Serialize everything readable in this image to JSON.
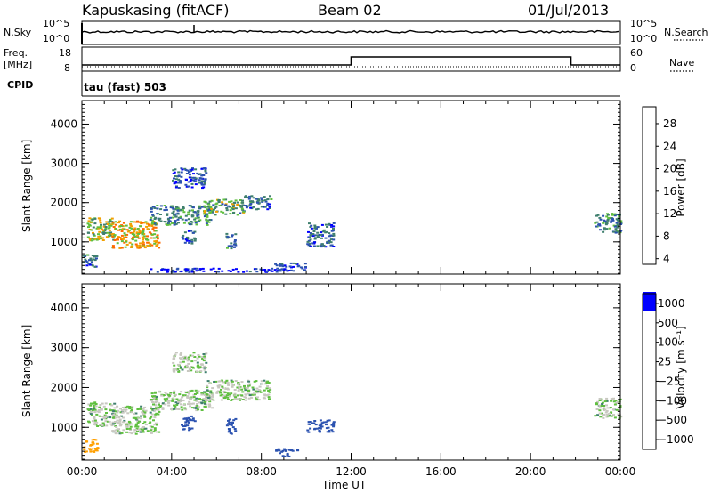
{
  "header": {
    "station": "Kapuskasing (fitACF)",
    "beam": "Beam 02",
    "date": "01/Jul/2013"
  },
  "top_panel": {
    "left_label": "N.Sky",
    "left_ticks": [
      "10^5",
      "10^0"
    ],
    "right_ticks": [
      "10^5",
      "10^0"
    ],
    "right_label": "N.Search"
  },
  "freq_panel": {
    "left_label_line1": "Freq.",
    "left_label_line2": "[MHz]",
    "left_ticks": [
      "18",
      "8"
    ],
    "right_ticks": [
      "60",
      "0"
    ],
    "right_label": "Nave"
  },
  "cpid": {
    "label": "CPID",
    "value": "tau (fast) 503"
  },
  "colors": {
    "power_scale": [
      "#0000ff",
      "#2b52b0",
      "#3f7f6e",
      "#5fbf3f",
      "#f2a000",
      "#ff6a00",
      "#ff0000"
    ],
    "velocity_scale": [
      "#ff0000",
      "#ff5a00",
      "#ffa000",
      "#c8c8c0",
      "#c8c8c0",
      "#5fbf3f",
      "#3f7f6e",
      "#2b52b0",
      "#0000ff"
    ]
  },
  "chart_data": [
    {
      "type": "heatmap",
      "name": "power",
      "xlabel": "Time UT",
      "ylabel": "Slant Range [km]",
      "xlim": [
        0,
        24
      ],
      "ylim": [
        180,
        4600
      ],
      "x_ticks": [
        "00:00",
        "04:00",
        "08:00",
        "12:00",
        "16:00",
        "20:00",
        "00:00"
      ],
      "y_ticks": [
        "1000",
        "2000",
        "3000",
        "4000"
      ],
      "colorbar": {
        "label": "Power [dB]",
        "ticks": [
          "28",
          "24",
          "20",
          "16",
          "12",
          "8",
          "4"
        ]
      },
      "patches": [
        {
          "t0": 0.2,
          "t1": 1.4,
          "r0": 1050,
          "r1": 1650,
          "db": 14
        },
        {
          "t0": 1.3,
          "t1": 3.4,
          "r0": 850,
          "r1": 1550,
          "db": 18
        },
        {
          "t0": 3.0,
          "t1": 5.8,
          "r0": 1450,
          "r1": 1950,
          "db": 10
        },
        {
          "t0": 5.4,
          "t1": 7.2,
          "r0": 1700,
          "r1": 2100,
          "db": 12
        },
        {
          "t0": 7.2,
          "t1": 8.4,
          "r0": 1850,
          "r1": 2200,
          "db": 8
        },
        {
          "t0": 0.0,
          "t1": 0.7,
          "r0": 380,
          "r1": 720,
          "db": 8
        },
        {
          "t0": 4.4,
          "t1": 5.0,
          "r0": 980,
          "r1": 1300,
          "db": 7
        },
        {
          "t0": 6.4,
          "t1": 6.8,
          "r0": 850,
          "r1": 1250,
          "db": 9
        },
        {
          "t0": 10.0,
          "t1": 11.2,
          "r0": 900,
          "r1": 1500,
          "db": 7
        },
        {
          "t0": 22.8,
          "t1": 24.0,
          "r0": 1250,
          "r1": 1750,
          "db": 9
        },
        {
          "t0": 4.0,
          "t1": 5.5,
          "r0": 2400,
          "r1": 2900,
          "db": 6
        },
        {
          "t0": 8.5,
          "t1": 10.0,
          "r0": 280,
          "r1": 480,
          "db": 5
        },
        {
          "t0": 3.0,
          "t1": 9.0,
          "r0": 250,
          "r1": 350,
          "db": 4
        }
      ]
    },
    {
      "type": "heatmap",
      "name": "velocity",
      "xlabel": "Time UT",
      "ylabel": "Slant Range [km]",
      "xlim": [
        0,
        24
      ],
      "ylim": [
        180,
        4600
      ],
      "x_ticks": [
        "00:00",
        "04:00",
        "08:00",
        "12:00",
        "16:00",
        "20:00",
        "00:00"
      ],
      "y_ticks": [
        "1000",
        "2000",
        "3000",
        "4000"
      ],
      "colorbar": {
        "label": "Velocity [m s⁻¹]",
        "ticks": [
          "1000",
          "500",
          "100",
          "25",
          "−25",
          "−100",
          "−500",
          "−1000"
        ]
      },
      "patches": [
        {
          "t0": 0.2,
          "t1": 1.4,
          "r0": 1050,
          "r1": 1650,
          "v": 0
        },
        {
          "t0": 1.3,
          "t1": 3.4,
          "r0": 850,
          "r1": 1550,
          "v": 0
        },
        {
          "t0": 3.0,
          "t1": 5.8,
          "r0": 1450,
          "r1": 1950,
          "v": 0
        },
        {
          "t0": 5.4,
          "t1": 8.4,
          "r0": 1700,
          "r1": 2200,
          "v": 0
        },
        {
          "t0": 0.0,
          "t1": 0.7,
          "r0": 380,
          "r1": 720,
          "v": -300
        },
        {
          "t0": 4.4,
          "t1": 5.0,
          "r0": 950,
          "r1": 1300,
          "v": 150
        },
        {
          "t0": 6.4,
          "t1": 6.8,
          "r0": 850,
          "r1": 1250,
          "v": 250
        },
        {
          "t0": 10.0,
          "t1": 11.2,
          "r0": 900,
          "r1": 1200,
          "v": 250
        },
        {
          "t0": 22.8,
          "t1": 24.0,
          "r0": 1250,
          "r1": 1750,
          "v": 0
        },
        {
          "t0": 4.0,
          "t1": 5.5,
          "r0": 2400,
          "r1": 2900,
          "v": 0
        },
        {
          "t0": 8.6,
          "t1": 9.6,
          "r0": 280,
          "r1": 480,
          "v": 150
        }
      ]
    }
  ]
}
